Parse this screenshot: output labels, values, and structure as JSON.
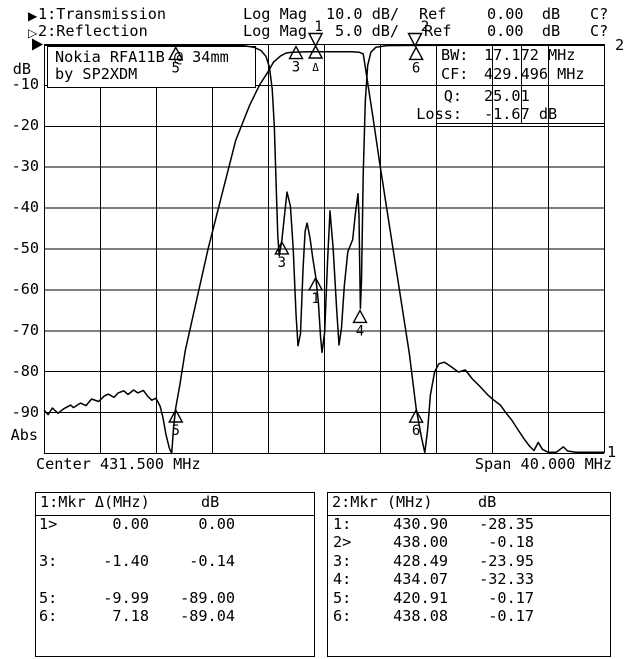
{
  "header": {
    "line1": {
      "prefix": "▶",
      "channel": "1:Transmission",
      "format": "Log Mag",
      "scale": "10.0 dB/",
      "ref_label": "Ref",
      "ref_value": "0.00  dB",
      "cal": "C?"
    },
    "line2": {
      "prefix": "▷",
      "channel": "2:Reflection",
      "format": "Log Mag",
      "scale": "5.0 dB/",
      "ref_label": "Ref",
      "ref_value": "0.00  dB",
      "cal": "C?"
    }
  },
  "plot": {
    "title_line1": "Nokia RFA11B @ 34mm",
    "title_line2": "by SP2XDM",
    "info": {
      "bw_label": "BW:",
      "bw_value": "17.172 MHz",
      "cf_label": "CF:",
      "cf_value": "429.496 MHz",
      "q_label": "Q:",
      "q_value": "25.01",
      "loss_label": "Loss:",
      "loss_value": "-1.67 dB"
    },
    "y_axis": {
      "unit": "dB",
      "ticks": [
        "-10",
        "-20",
        "-30",
        "-40",
        "-50",
        "-60",
        "-70",
        "-80",
        "-90"
      ],
      "bottom_label": "Abs"
    },
    "x_axis": {
      "center": "Center 431.500 MHz",
      "span": "Span 40.000 MHz"
    },
    "trace_id_top_right": "2",
    "trace_id_bottom_right": "1"
  },
  "tables": {
    "left": {
      "header_title": "1:Mkr Δ(MHz)",
      "header_db": "dB",
      "rows": [
        [
          "1>",
          "0.00",
          "0.00"
        ],
        [
          "",
          "",
          ""
        ],
        [
          "3:",
          "-1.40",
          "-0.14"
        ],
        [
          "",
          "",
          ""
        ],
        [
          "5:",
          "-9.99",
          "-89.00"
        ],
        [
          "6:",
          "7.18",
          "-89.04"
        ]
      ]
    },
    "right": {
      "header_title": "2:Mkr (MHz)",
      "header_db": "dB",
      "rows": [
        [
          "1:",
          "430.90",
          "-28.35"
        ],
        [
          "2>",
          "438.00",
          "-0.18"
        ],
        [
          "3:",
          "428.49",
          "-23.95"
        ],
        [
          "4:",
          "434.07",
          "-32.33"
        ],
        [
          "5:",
          "420.91",
          "-0.17"
        ],
        [
          "6:",
          "438.08",
          "-0.17"
        ]
      ]
    }
  },
  "chart_data": {
    "type": "line",
    "title": "Nokia RFA11B @ 34mm by SP2XDM",
    "x_axis": {
      "label": "MHz",
      "center_mhz": 431.5,
      "span_mhz": 40,
      "min_mhz": 411.5,
      "max_mhz": 451.5,
      "divisions": 10
    },
    "y_axis": {
      "label": "dB",
      "ref_db": 0,
      "divisions": 10,
      "grid_labels_db": [
        -10,
        -20,
        -30,
        -40,
        -50,
        -60,
        -70,
        -80,
        -90
      ],
      "bottom_label": "Abs"
    },
    "measurements": {
      "bw_mhz": 17.172,
      "cf_mhz": 429.496,
      "q": 25.01,
      "loss_db": -1.67
    },
    "series": [
      {
        "name": "Transmission",
        "db_per_div": 10,
        "points": [
          [
            411.5,
            -89.5
          ],
          [
            411.8,
            -90.6
          ],
          [
            412.1,
            -89.0
          ],
          [
            412.5,
            -90.3
          ],
          [
            412.9,
            -89.2
          ],
          [
            413.4,
            -88.3
          ],
          [
            413.6,
            -88.9
          ],
          [
            414.1,
            -87.8
          ],
          [
            414.5,
            -88.4
          ],
          [
            414.9,
            -86.8
          ],
          [
            415.4,
            -87.4
          ],
          [
            415.8,
            -86.1
          ],
          [
            416.1,
            -85.6
          ],
          [
            416.5,
            -86.4
          ],
          [
            416.8,
            -85.3
          ],
          [
            417.2,
            -84.8
          ],
          [
            417.5,
            -85.7
          ],
          [
            417.9,
            -84.6
          ],
          [
            418.2,
            -85.3
          ],
          [
            418.6,
            -84.7
          ],
          [
            418.9,
            -86.1
          ],
          [
            419.2,
            -87.1
          ],
          [
            419.5,
            -86.6
          ],
          [
            419.8,
            -88.6
          ],
          [
            420.0,
            -91.4
          ],
          [
            420.2,
            -95.3
          ],
          [
            420.45,
            -98.8
          ],
          [
            420.62,
            -100.3
          ],
          [
            420.75,
            -94.0
          ],
          [
            420.91,
            -89.0
          ],
          [
            421.2,
            -83.4
          ],
          [
            421.6,
            -74.8
          ],
          [
            422.4,
            -62.6
          ],
          [
            423.2,
            -50.4
          ],
          [
            424.2,
            -36.9
          ],
          [
            425.2,
            -23.5
          ],
          [
            426.2,
            -14.9
          ],
          [
            426.9,
            -10.0
          ],
          [
            427.5,
            -6.8
          ],
          [
            427.9,
            -4.4
          ],
          [
            428.4,
            -2.9
          ],
          [
            428.8,
            -2.2
          ],
          [
            429.2,
            -2.0
          ],
          [
            430.5,
            -1.9
          ],
          [
            432.0,
            -1.9
          ],
          [
            433.5,
            -1.9
          ],
          [
            434.0,
            -2.0
          ],
          [
            434.3,
            -2.4
          ],
          [
            434.6,
            -9.0
          ],
          [
            435.0,
            -18.0
          ],
          [
            435.5,
            -29.6
          ],
          [
            436.2,
            -45.0
          ],
          [
            436.9,
            -60.4
          ],
          [
            437.6,
            -75.8
          ],
          [
            438.08,
            -89.0
          ],
          [
            438.45,
            -96.0
          ],
          [
            438.7,
            -99.9
          ],
          [
            438.9,
            -94.4
          ],
          [
            439.1,
            -85.8
          ],
          [
            439.4,
            -80.2
          ],
          [
            439.7,
            -78.2
          ],
          [
            440.1,
            -77.8
          ],
          [
            440.5,
            -78.7
          ],
          [
            441.1,
            -80.2
          ],
          [
            441.6,
            -79.7
          ],
          [
            442.1,
            -81.9
          ],
          [
            442.6,
            -83.6
          ],
          [
            443.2,
            -85.8
          ],
          [
            443.6,
            -87.0
          ],
          [
            444.1,
            -88.3
          ],
          [
            444.5,
            -90.2
          ],
          [
            444.9,
            -91.9
          ],
          [
            445.3,
            -94.0
          ],
          [
            445.8,
            -96.6
          ],
          [
            446.2,
            -98.4
          ],
          [
            446.5,
            -99.4
          ],
          [
            446.8,
            -97.4
          ],
          [
            447.1,
            -99.1
          ],
          [
            447.5,
            -99.8
          ],
          [
            448.1,
            -99.8
          ],
          [
            448.6,
            -98.5
          ],
          [
            448.9,
            -99.5
          ],
          [
            449.5,
            -99.8
          ],
          [
            450.3,
            -99.8
          ],
          [
            451.0,
            -99.8
          ],
          [
            451.5,
            -99.8
          ]
        ]
      },
      {
        "name": "Reflection",
        "db_per_div": 5,
        "points": [
          [
            411.5,
            -0.15
          ],
          [
            413.5,
            -0.16
          ],
          [
            415.5,
            -0.15
          ],
          [
            417.5,
            -0.17
          ],
          [
            419.5,
            -0.15
          ],
          [
            420.91,
            -0.17
          ],
          [
            422.5,
            -0.16
          ],
          [
            424.5,
            -0.17
          ],
          [
            425.8,
            -0.22
          ],
          [
            426.5,
            -0.4
          ],
          [
            427.0,
            -0.8
          ],
          [
            427.35,
            -1.5
          ],
          [
            427.6,
            -2.8
          ],
          [
            427.8,
            -5.5
          ],
          [
            427.95,
            -10.0
          ],
          [
            428.08,
            -17.0
          ],
          [
            428.2,
            -23.5
          ],
          [
            428.3,
            -25.9
          ],
          [
            428.42,
            -24.7
          ],
          [
            428.49,
            -23.95
          ],
          [
            428.65,
            -21.4
          ],
          [
            428.86,
            -18.1
          ],
          [
            429.1,
            -19.8
          ],
          [
            429.3,
            -25.0
          ],
          [
            429.5,
            -33.0
          ],
          [
            429.64,
            -36.9
          ],
          [
            429.82,
            -35.4
          ],
          [
            430.0,
            -27.6
          ],
          [
            430.15,
            -22.9
          ],
          [
            430.29,
            -21.9
          ],
          [
            430.5,
            -23.7
          ],
          [
            430.7,
            -26.2
          ],
          [
            430.9,
            -28.35
          ],
          [
            431.1,
            -31.6
          ],
          [
            431.25,
            -35.7
          ],
          [
            431.36,
            -37.7
          ],
          [
            431.55,
            -35.2
          ],
          [
            431.75,
            -26.7
          ],
          [
            431.93,
            -20.4
          ],
          [
            432.15,
            -24.9
          ],
          [
            432.4,
            -32.3
          ],
          [
            432.57,
            -36.8
          ],
          [
            432.75,
            -34.7
          ],
          [
            432.95,
            -29.6
          ],
          [
            433.2,
            -25.4
          ],
          [
            433.55,
            -23.9
          ],
          [
            433.75,
            -20.6
          ],
          [
            433.93,
            -18.3
          ],
          [
            434.0,
            -21.0
          ],
          [
            434.05,
            -27.0
          ],
          [
            434.1,
            -32.33
          ],
          [
            434.18,
            -29.0
          ],
          [
            434.3,
            -16.0
          ],
          [
            434.45,
            -7.0
          ],
          [
            434.62,
            -2.6
          ],
          [
            434.85,
            -1.0
          ],
          [
            435.2,
            -0.4
          ],
          [
            436.0,
            -0.2
          ],
          [
            438.08,
            -0.17
          ],
          [
            440.5,
            -0.15
          ],
          [
            443.5,
            -0.16
          ],
          [
            446.5,
            -0.15
          ],
          [
            449.5,
            -0.16
          ],
          [
            451.5,
            -0.15
          ]
        ]
      }
    ],
    "markers_top": [
      {
        "label": "1",
        "mhz": 430.9,
        "dx": 3
      },
      {
        "label": "2",
        "mhz": 438.0,
        "dx": 10
      }
    ],
    "markers": [
      {
        "trace": 2,
        "mhz": 420.91,
        "db": -0.17,
        "label": "5"
      },
      {
        "trace": 1,
        "mhz": 429.5,
        "db": -0.14,
        "label": "3"
      },
      {
        "trace": 1,
        "mhz": 430.9,
        "db": 0.0,
        "label": "Δ",
        "small": true
      },
      {
        "trace": 2,
        "mhz": 428.49,
        "db": -23.95,
        "label": "3"
      },
      {
        "trace": 2,
        "mhz": 430.9,
        "db": -28.35,
        "label": "1"
      },
      {
        "trace": 2,
        "mhz": 434.07,
        "db": -32.33,
        "label": "4"
      },
      {
        "trace": 2,
        "mhz": 438.08,
        "db": -0.17,
        "label": "6"
      },
      {
        "trace": 1,
        "mhz": 420.91,
        "db": -89.0,
        "label": "5"
      },
      {
        "trace": 1,
        "mhz": 438.08,
        "db": -89.04,
        "label": "6"
      }
    ]
  }
}
